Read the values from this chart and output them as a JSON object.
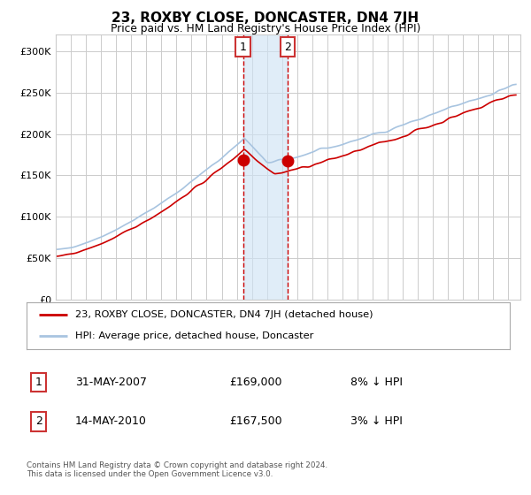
{
  "title": "23, ROXBY CLOSE, DONCASTER, DN4 7JH",
  "subtitle": "Price paid vs. HM Land Registry's House Price Index (HPI)",
  "hpi_color": "#a8c4e0",
  "price_color": "#cc0000",
  "marker_color": "#cc0000",
  "bg_color": "#ffffff",
  "grid_color": "#cccccc",
  "shading_color": "#d0e4f5",
  "dashed_color": "#cc0000",
  "ylim": [
    0,
    320000
  ],
  "yticks": [
    0,
    50000,
    100000,
    150000,
    200000,
    250000,
    300000
  ],
  "ytick_labels": [
    "£0",
    "£50K",
    "£100K",
    "£150K",
    "£200K",
    "£250K",
    "£300K"
  ],
  "sale1_date": 2007.42,
  "sale1_price": 169000,
  "sale1_label": "1",
  "sale2_date": 2010.37,
  "sale2_price": 167500,
  "sale2_label": "2",
  "legend_line1": "23, ROXBY CLOSE, DONCASTER, DN4 7JH (detached house)",
  "legend_line2": "HPI: Average price, detached house, Doncaster",
  "table_row1_num": "1",
  "table_row1_date": "31-MAY-2007",
  "table_row1_price": "£169,000",
  "table_row1_hpi": "8% ↓ HPI",
  "table_row2_num": "2",
  "table_row2_date": "14-MAY-2010",
  "table_row2_price": "£167,500",
  "table_row2_hpi": "3% ↓ HPI",
  "footer": "Contains HM Land Registry data © Crown copyright and database right 2024.\nThis data is licensed under the Open Government Licence v3.0."
}
